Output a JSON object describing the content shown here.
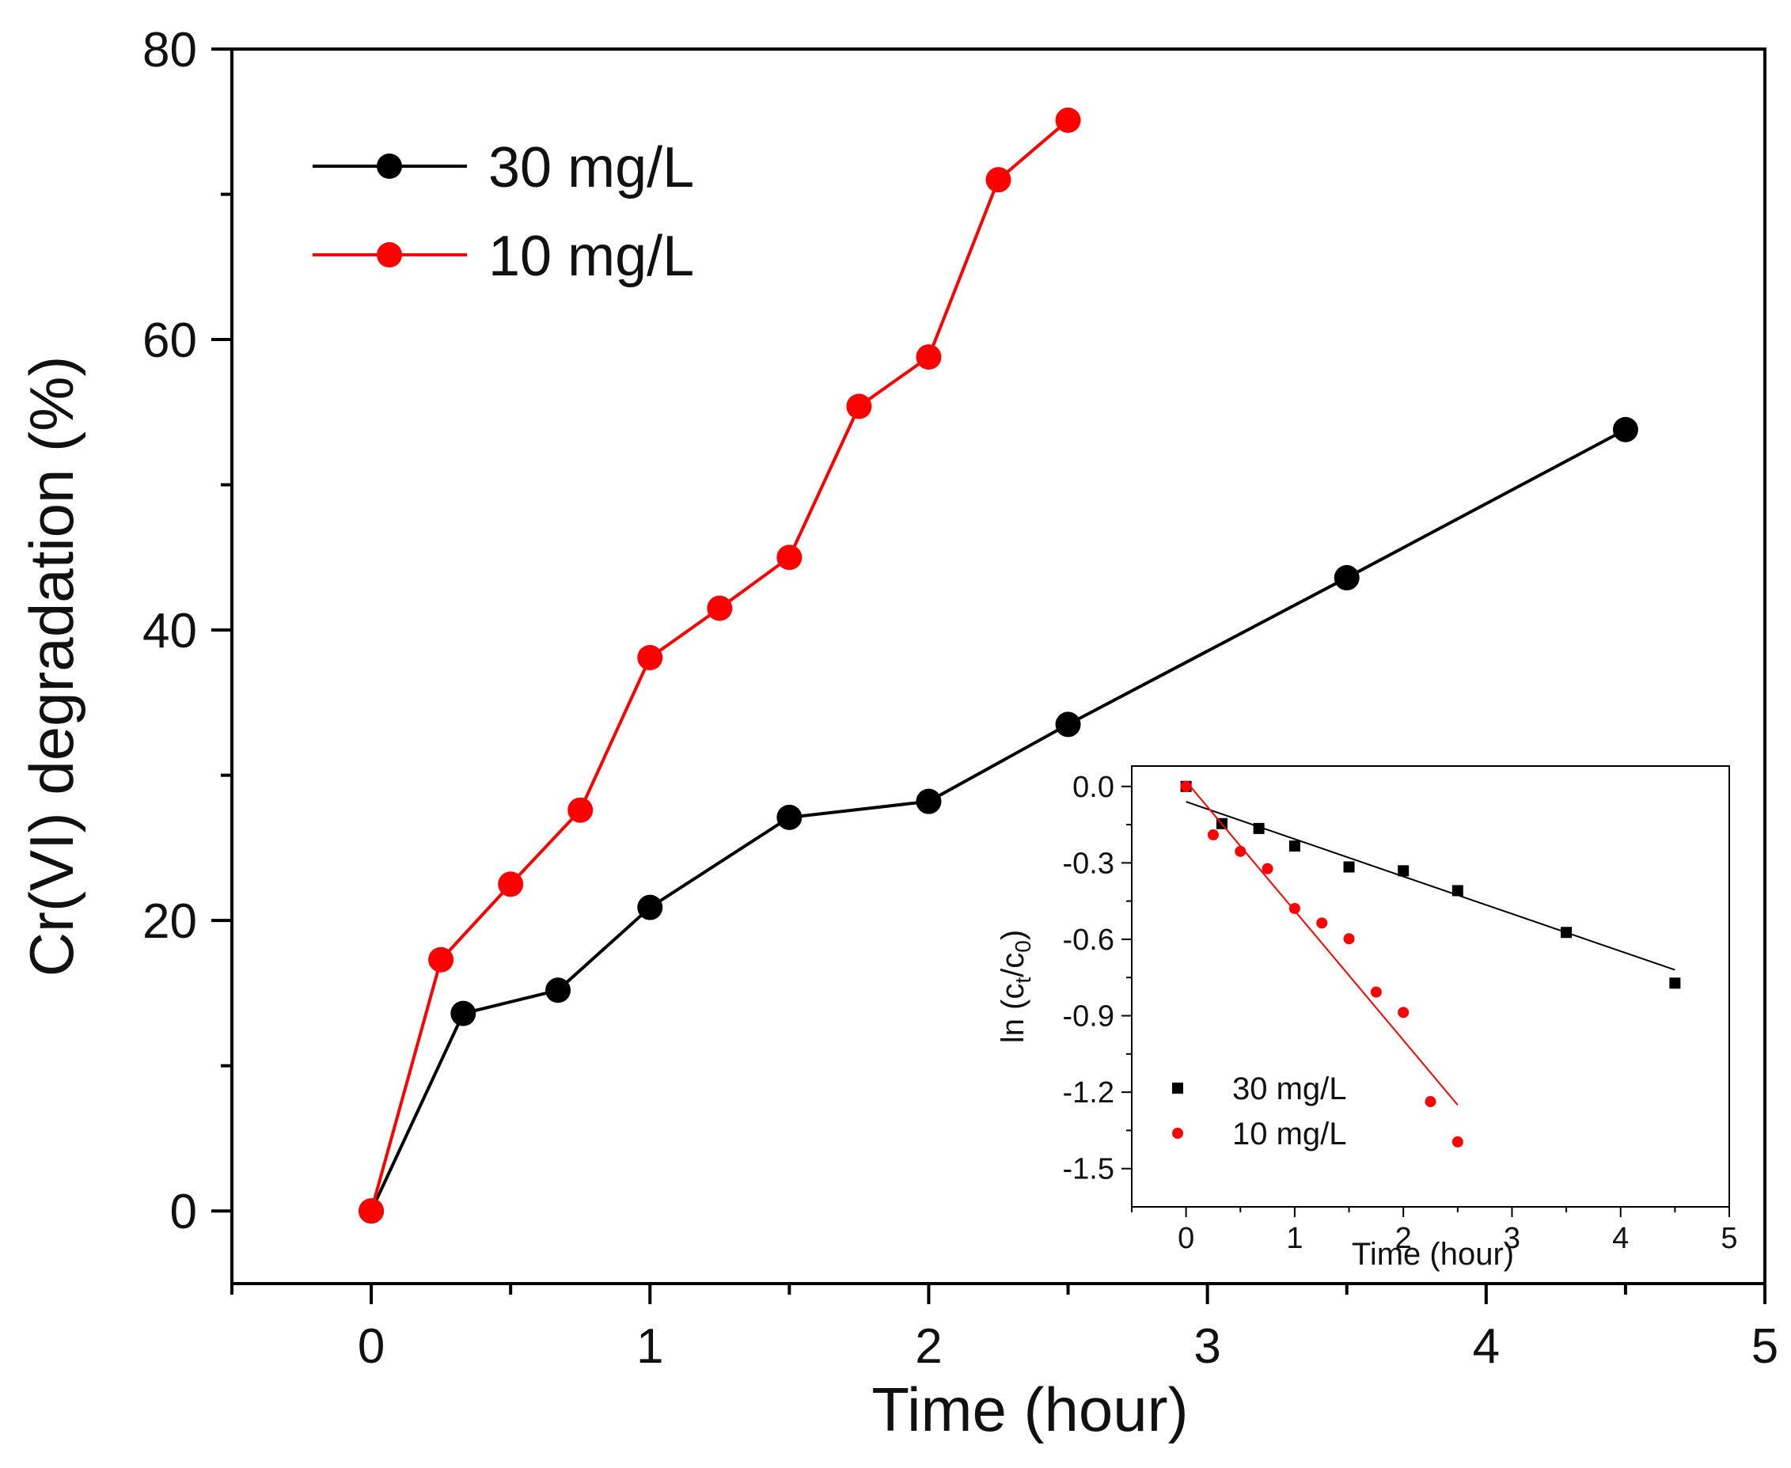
{
  "chart_data": [
    {
      "type": "line",
      "role": "main",
      "title": "",
      "xlabel": "Time (hour)",
      "ylabel": "Cr(VI) degradation (%)",
      "xlim": [
        -0.5,
        5
      ],
      "ylim": [
        -5,
        80
      ],
      "xticks": [
        0,
        1,
        2,
        3,
        4,
        5
      ],
      "xtick_labels": [
        "0",
        "1",
        "2",
        "3",
        "4",
        "5"
      ],
      "yticks": [
        0,
        20,
        40,
        60,
        80
      ],
      "ytick_labels": [
        "0",
        "20",
        "40",
        "60",
        "80"
      ],
      "legend_position": "top-left",
      "series": [
        {
          "name": "30 mg/L",
          "color": "#000000",
          "x": [
            0,
            0.33,
            0.67,
            1,
            1.5,
            2,
            2.5,
            3.5,
            4.5
          ],
          "values": [
            0,
            13.6,
            15.2,
            20.9,
            27.1,
            28.2,
            33.5,
            43.6,
            53.8
          ]
        },
        {
          "name": "10 mg/L",
          "color": "#ff0000",
          "x": [
            0,
            0.25,
            0.5,
            0.75,
            1,
            1.25,
            1.5,
            1.75,
            2,
            2.25,
            2.5
          ],
          "values": [
            0,
            17.3,
            22.5,
            27.6,
            38.1,
            41.5,
            45.0,
            55.4,
            58.8,
            71.0,
            75.1
          ]
        }
      ]
    },
    {
      "type": "scatter",
      "role": "inset",
      "title": "",
      "xlabel": "Time (hour)",
      "ylabel_parts": {
        "prefix": "ln (c",
        "sub1": "t",
        "mid": "/c",
        "sub2": "0",
        "suffix": ")"
      },
      "xlim": [
        -0.5,
        5
      ],
      "ylim": [
        -1.65,
        0.08
      ],
      "xticks": [
        0,
        1,
        2,
        3,
        4,
        5
      ],
      "xtick_labels": [
        "0",
        "1",
        "2",
        "3",
        "4",
        "5"
      ],
      "yticks": [
        0.0,
        -0.3,
        -0.6,
        -0.9,
        -1.2,
        -1.5
      ],
      "ytick_labels": [
        "0.0",
        "-0.3",
        "-0.6",
        "-0.9",
        "-1.2",
        "-1.5"
      ],
      "legend_position": "bottom-left",
      "series": [
        {
          "name": "30 mg/L",
          "color": "#000000",
          "marker": "square",
          "x": [
            0,
            0.33,
            0.67,
            1,
            1.5,
            2,
            2.5,
            3.5,
            4.5
          ],
          "values": [
            0,
            -0.146,
            -0.165,
            -0.234,
            -0.316,
            -0.331,
            -0.409,
            -0.573,
            -0.772
          ],
          "fit_line": {
            "x": [
              0,
              4.5
            ],
            "y": [
              -0.06,
              -0.72
            ]
          }
        },
        {
          "name": "10 mg/L",
          "color": "#ff0000",
          "marker": "circle",
          "x": [
            0,
            0.25,
            0.5,
            0.75,
            1,
            1.25,
            1.5,
            1.75,
            2,
            2.25,
            2.5
          ],
          "values": [
            0,
            -0.19,
            -0.255,
            -0.323,
            -0.479,
            -0.536,
            -0.598,
            -0.807,
            -0.887,
            -1.237,
            -1.395
          ],
          "fit_line": {
            "x": [
              0,
              2.5
            ],
            "y": [
              0.02,
              -1.25
            ]
          }
        }
      ]
    }
  ]
}
